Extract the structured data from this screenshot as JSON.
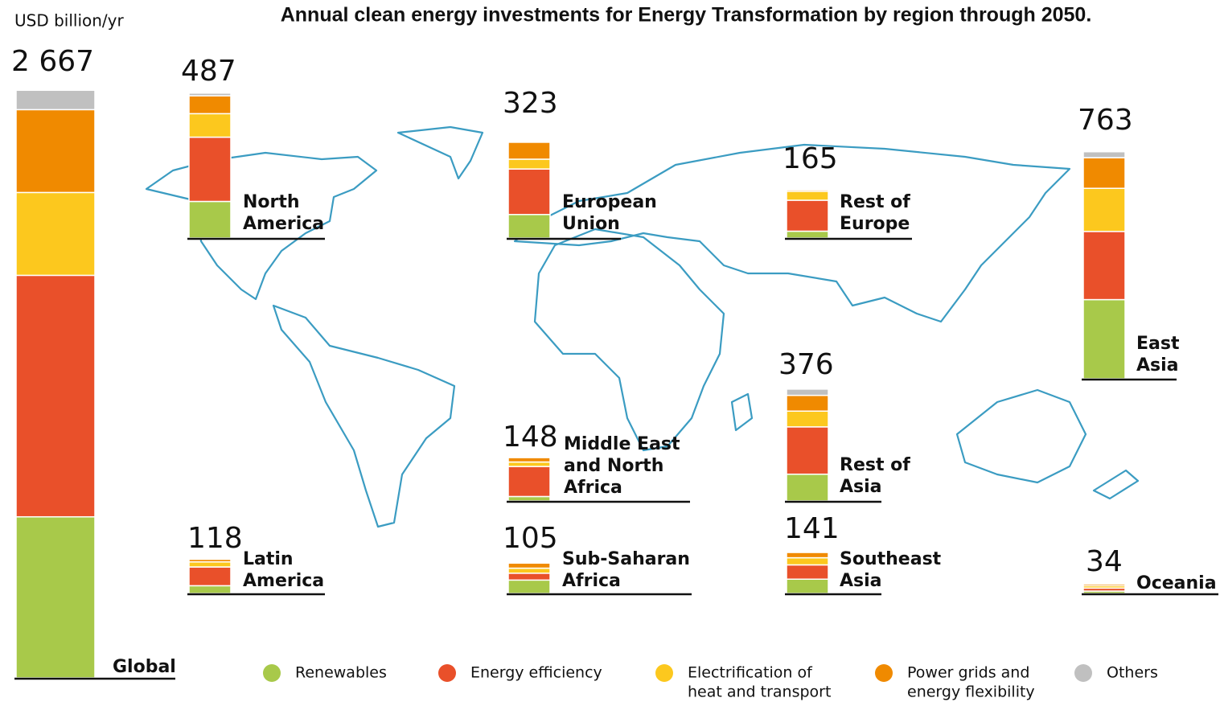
{
  "chart_data": {
    "type": "stacked-bar",
    "title": "Annual clean energy investments for Energy Transformation by region through 2050.",
    "unit_label": "USD billion/yr",
    "segments": [
      {
        "name": [
          "Renewables"
        ],
        "color": "#a8c94a"
      },
      {
        "name": [
          "Energy efficiency"
        ],
        "color": "#e9502a"
      },
      {
        "name": [
          "Electrification of",
          "heat and transport"
        ],
        "color": "#fcc81e"
      },
      {
        "name": [
          "Power grids and",
          "energy flexibility"
        ],
        "color": "#f08a00"
      },
      {
        "name": [
          "Others"
        ],
        "color": "#c0c0c0"
      }
    ],
    "regions": [
      {
        "name": [
          "Global"
        ],
        "total": 2667,
        "total_label": "2 667",
        "values": [
          731,
          1096,
          376,
          376,
          88
        ]
      },
      {
        "name": [
          "North",
          "America"
        ],
        "total": 487,
        "values": [
          123,
          216,
          79,
          60,
          9
        ]
      },
      {
        "name": [
          "European",
          "Union"
        ],
        "total": 323,
        "values": [
          79,
          153,
          33,
          57,
          1
        ]
      },
      {
        "name": [
          "Rest of",
          "Europe"
        ],
        "total": 165,
        "values": [
          23,
          104,
          30,
          5,
          3
        ]
      },
      {
        "name": [
          "East",
          "Asia"
        ],
        "total": 763,
        "values": [
          266,
          229,
          145,
          103,
          20
        ]
      },
      {
        "name": [
          "Rest of",
          "Asia"
        ],
        "total": 376,
        "values": [
          90,
          159,
          53,
          53,
          21
        ]
      },
      {
        "name": [
          "Middle East",
          "and North",
          "Africa"
        ],
        "total": 148,
        "values": [
          15,
          101,
          15,
          15,
          2
        ]
      },
      {
        "name": [
          "Latin",
          "America"
        ],
        "total": 118,
        "values": [
          26,
          63,
          17,
          9,
          3
        ]
      },
      {
        "name": [
          "Sub-Saharan",
          "Africa"
        ],
        "total": 105,
        "values": [
          45,
          23,
          17,
          17,
          3
        ]
      },
      {
        "name": [
          "Southeast",
          "Asia"
        ],
        "total": 141,
        "values": [
          48,
          48,
          24,
          18,
          3
        ]
      },
      {
        "name": [
          "Oceania"
        ],
        "total": 34,
        "values": [
          8,
          10,
          8,
          6,
          2
        ]
      }
    ]
  }
}
